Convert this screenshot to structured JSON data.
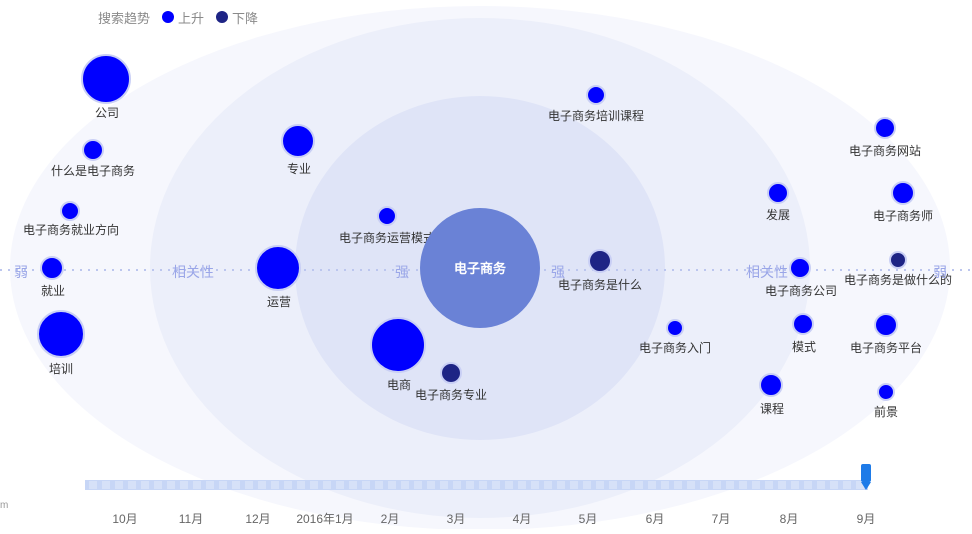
{
  "legend": {
    "title": "搜索趋势",
    "up_label": "上升",
    "down_label": "下降"
  },
  "colors": {
    "up": "#0000ff",
    "down": "#1e2485",
    "center": "#6a82d6",
    "ring": "#dfe4f7"
  },
  "rings": {
    "weak": "弱",
    "relevance": "相关性",
    "strong": "强"
  },
  "chart_data": {
    "type": "bubble-relation",
    "center_keyword": "电子商务",
    "keywords": [
      {
        "label": "公司",
        "trend": "up"
      },
      {
        "label": "什么是电子商务",
        "trend": "up"
      },
      {
        "label": "电子商务就业方向",
        "trend": "up"
      },
      {
        "label": "就业",
        "trend": "up"
      },
      {
        "label": "培训",
        "trend": "up"
      },
      {
        "label": "专业",
        "trend": "up"
      },
      {
        "label": "运营",
        "trend": "up"
      },
      {
        "label": "电子商务运营模式",
        "trend": "up"
      },
      {
        "label": "电商",
        "trend": "up"
      },
      {
        "label": "电子商务专业",
        "trend": "down"
      },
      {
        "label": "电子商务培训课程",
        "trend": "up"
      },
      {
        "label": "电子商务是什么",
        "trend": "down"
      },
      {
        "label": "电子商务入门",
        "trend": "up"
      },
      {
        "label": "发展",
        "trend": "up"
      },
      {
        "label": "电子商务公司",
        "trend": "up"
      },
      {
        "label": "模式",
        "trend": "up"
      },
      {
        "label": "课程",
        "trend": "up"
      },
      {
        "label": "电子商务网站",
        "trend": "up"
      },
      {
        "label": "电子商务师",
        "trend": "up"
      },
      {
        "label": "电子商务是做什么的",
        "trend": "down"
      },
      {
        "label": "电子商务平台",
        "trend": "up"
      },
      {
        "label": "前景",
        "trend": "up"
      }
    ],
    "timeline": {
      "months": [
        "10月",
        "11月",
        "12月",
        "2016年1月",
        "2月",
        "3月",
        "4月",
        "5月",
        "6月",
        "7月",
        "8月",
        "9月"
      ],
      "selected": "9月"
    }
  },
  "corner_text": "m"
}
